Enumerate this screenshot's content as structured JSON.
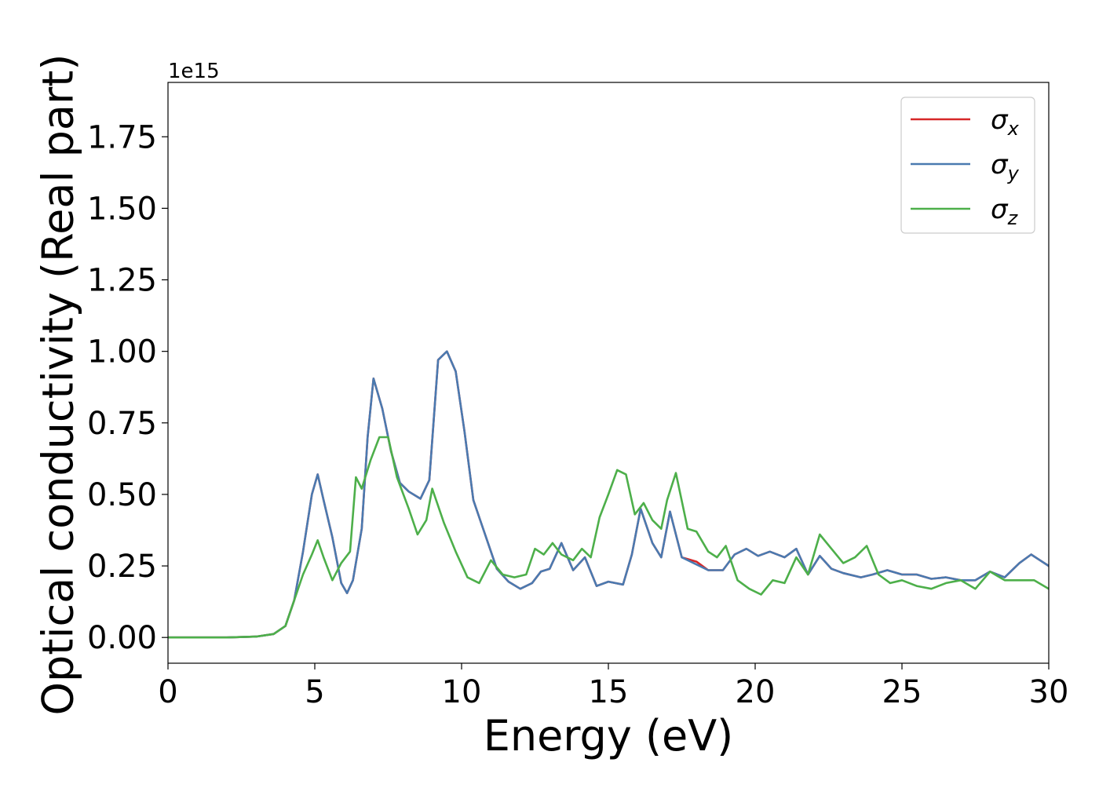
{
  "chart_data": {
    "type": "line",
    "xlabel": "Energy (eV)",
    "ylabel": "Optical conductivity (Real part)",
    "y_offset_text": "1e15",
    "xlim": [
      0,
      30
    ],
    "ylim": [
      -0.09,
      1.94
    ],
    "x_ticks": [
      0,
      5,
      10,
      15,
      20,
      25,
      30
    ],
    "x_tick_labels": [
      "0",
      "5",
      "10",
      "15",
      "20",
      "25",
      "30"
    ],
    "y_ticks": [
      0.0,
      0.25,
      0.5,
      0.75,
      1.0,
      1.25,
      1.5,
      1.75
    ],
    "y_tick_labels": [
      "0.00",
      "0.25",
      "0.50",
      "0.75",
      "1.00",
      "1.25",
      "1.50",
      "1.75"
    ],
    "grid": false,
    "legend_position": "top-right",
    "series": [
      {
        "name": "σ_x",
        "legend_symbol": "σ",
        "legend_subscript": "x",
        "color": "#d62728",
        "points": [
          [
            0,
            0
          ],
          [
            2,
            0
          ],
          [
            3,
            0.003
          ],
          [
            3.6,
            0.012
          ],
          [
            4.0,
            0.04
          ],
          [
            4.3,
            0.13
          ],
          [
            4.6,
            0.3
          ],
          [
            4.9,
            0.5
          ],
          [
            5.1,
            0.57
          ],
          [
            5.3,
            0.48
          ],
          [
            5.6,
            0.35
          ],
          [
            5.9,
            0.19
          ],
          [
            6.1,
            0.155
          ],
          [
            6.3,
            0.2
          ],
          [
            6.6,
            0.38
          ],
          [
            6.8,
            0.7
          ],
          [
            7.0,
            0.905
          ],
          [
            7.3,
            0.8
          ],
          [
            7.6,
            0.65
          ],
          [
            7.9,
            0.54
          ],
          [
            8.2,
            0.51
          ],
          [
            8.6,
            0.485
          ],
          [
            8.9,
            0.55
          ],
          [
            9.2,
            0.97
          ],
          [
            9.5,
            1.0
          ],
          [
            9.8,
            0.93
          ],
          [
            10.1,
            0.72
          ],
          [
            10.4,
            0.48
          ],
          [
            10.7,
            0.39
          ],
          [
            10.9,
            0.33
          ],
          [
            11.2,
            0.24
          ],
          [
            11.6,
            0.195
          ],
          [
            12.0,
            0.17
          ],
          [
            12.4,
            0.19
          ],
          [
            12.7,
            0.23
          ],
          [
            13.0,
            0.24
          ],
          [
            13.4,
            0.33
          ],
          [
            13.8,
            0.235
          ],
          [
            14.2,
            0.28
          ],
          [
            14.6,
            0.18
          ],
          [
            15.0,
            0.195
          ],
          [
            15.5,
            0.185
          ],
          [
            15.8,
            0.29
          ],
          [
            16.1,
            0.45
          ],
          [
            16.5,
            0.33
          ],
          [
            16.8,
            0.28
          ],
          [
            17.1,
            0.44
          ],
          [
            17.5,
            0.28
          ],
          [
            18.0,
            0.265
          ],
          [
            18.4,
            0.235
          ],
          [
            18.9,
            0.235
          ],
          [
            19.3,
            0.29
          ],
          [
            19.7,
            0.31
          ],
          [
            20.1,
            0.285
          ],
          [
            20.5,
            0.3
          ],
          [
            21.0,
            0.28
          ],
          [
            21.4,
            0.31
          ],
          [
            21.8,
            0.22
          ],
          [
            22.2,
            0.285
          ],
          [
            22.6,
            0.24
          ],
          [
            23.0,
            0.225
          ],
          [
            23.6,
            0.21
          ],
          [
            24.0,
            0.22
          ],
          [
            24.5,
            0.235
          ],
          [
            25.0,
            0.22
          ],
          [
            25.5,
            0.22
          ],
          [
            26.0,
            0.205
          ],
          [
            26.5,
            0.21
          ],
          [
            27.0,
            0.2
          ],
          [
            27.5,
            0.2
          ],
          [
            28.0,
            0.23
          ],
          [
            28.5,
            0.21
          ],
          [
            29.0,
            0.26
          ],
          [
            29.4,
            0.29
          ],
          [
            29.7,
            0.27
          ],
          [
            30.0,
            0.25
          ]
        ]
      },
      {
        "name": "σ_y",
        "legend_symbol": "σ",
        "legend_subscript": "y",
        "color": "#4a7ab0",
        "points": [
          [
            0,
            0
          ],
          [
            2,
            0
          ],
          [
            3,
            0.003
          ],
          [
            3.6,
            0.012
          ],
          [
            4.0,
            0.04
          ],
          [
            4.3,
            0.13
          ],
          [
            4.6,
            0.3
          ],
          [
            4.9,
            0.5
          ],
          [
            5.1,
            0.57
          ],
          [
            5.3,
            0.48
          ],
          [
            5.6,
            0.35
          ],
          [
            5.9,
            0.19
          ],
          [
            6.1,
            0.155
          ],
          [
            6.3,
            0.2
          ],
          [
            6.6,
            0.38
          ],
          [
            6.8,
            0.7
          ],
          [
            7.0,
            0.905
          ],
          [
            7.3,
            0.8
          ],
          [
            7.6,
            0.65
          ],
          [
            7.9,
            0.54
          ],
          [
            8.2,
            0.51
          ],
          [
            8.6,
            0.485
          ],
          [
            8.9,
            0.55
          ],
          [
            9.2,
            0.97
          ],
          [
            9.5,
            1.0
          ],
          [
            9.8,
            0.93
          ],
          [
            10.1,
            0.72
          ],
          [
            10.4,
            0.48
          ],
          [
            10.7,
            0.39
          ],
          [
            10.9,
            0.33
          ],
          [
            11.2,
            0.24
          ],
          [
            11.6,
            0.195
          ],
          [
            12.0,
            0.17
          ],
          [
            12.4,
            0.19
          ],
          [
            12.7,
            0.23
          ],
          [
            13.0,
            0.24
          ],
          [
            13.4,
            0.33
          ],
          [
            13.8,
            0.235
          ],
          [
            14.2,
            0.28
          ],
          [
            14.6,
            0.18
          ],
          [
            15.0,
            0.195
          ],
          [
            15.5,
            0.185
          ],
          [
            15.8,
            0.29
          ],
          [
            16.1,
            0.45
          ],
          [
            16.5,
            0.33
          ],
          [
            16.8,
            0.28
          ],
          [
            17.1,
            0.44
          ],
          [
            17.5,
            0.28
          ],
          [
            18.0,
            0.255
          ],
          [
            18.4,
            0.235
          ],
          [
            18.9,
            0.235
          ],
          [
            19.3,
            0.29
          ],
          [
            19.7,
            0.31
          ],
          [
            20.1,
            0.285
          ],
          [
            20.5,
            0.3
          ],
          [
            21.0,
            0.28
          ],
          [
            21.4,
            0.31
          ],
          [
            21.8,
            0.22
          ],
          [
            22.2,
            0.285
          ],
          [
            22.6,
            0.24
          ],
          [
            23.0,
            0.225
          ],
          [
            23.6,
            0.21
          ],
          [
            24.0,
            0.22
          ],
          [
            24.5,
            0.235
          ],
          [
            25.0,
            0.22
          ],
          [
            25.5,
            0.22
          ],
          [
            26.0,
            0.205
          ],
          [
            26.5,
            0.21
          ],
          [
            27.0,
            0.2
          ],
          [
            27.5,
            0.2
          ],
          [
            28.0,
            0.23
          ],
          [
            28.5,
            0.21
          ],
          [
            29.0,
            0.26
          ],
          [
            29.4,
            0.29
          ],
          [
            29.7,
            0.27
          ],
          [
            30.0,
            0.25
          ]
        ]
      },
      {
        "name": "σ_z",
        "legend_symbol": "σ",
        "legend_subscript": "z",
        "color": "#4daf4a",
        "points": [
          [
            0,
            0
          ],
          [
            2,
            0
          ],
          [
            3,
            0.003
          ],
          [
            3.6,
            0.012
          ],
          [
            4.0,
            0.04
          ],
          [
            4.3,
            0.13
          ],
          [
            4.6,
            0.22
          ],
          [
            4.9,
            0.29
          ],
          [
            5.1,
            0.34
          ],
          [
            5.3,
            0.28
          ],
          [
            5.6,
            0.2
          ],
          [
            5.9,
            0.26
          ],
          [
            6.2,
            0.3
          ],
          [
            6.4,
            0.56
          ],
          [
            6.6,
            0.52
          ],
          [
            6.9,
            0.62
          ],
          [
            7.2,
            0.7
          ],
          [
            7.5,
            0.7
          ],
          [
            7.8,
            0.56
          ],
          [
            8.2,
            0.45
          ],
          [
            8.5,
            0.36
          ],
          [
            8.8,
            0.41
          ],
          [
            9.0,
            0.52
          ],
          [
            9.4,
            0.4
          ],
          [
            9.8,
            0.3
          ],
          [
            10.2,
            0.21
          ],
          [
            10.6,
            0.19
          ],
          [
            11.0,
            0.27
          ],
          [
            11.4,
            0.22
          ],
          [
            11.8,
            0.21
          ],
          [
            12.2,
            0.22
          ],
          [
            12.5,
            0.31
          ],
          [
            12.8,
            0.29
          ],
          [
            13.1,
            0.33
          ],
          [
            13.4,
            0.29
          ],
          [
            13.8,
            0.27
          ],
          [
            14.1,
            0.31
          ],
          [
            14.4,
            0.28
          ],
          [
            14.7,
            0.42
          ],
          [
            15.0,
            0.5
          ],
          [
            15.3,
            0.585
          ],
          [
            15.6,
            0.57
          ],
          [
            15.9,
            0.43
          ],
          [
            16.2,
            0.47
          ],
          [
            16.5,
            0.41
          ],
          [
            16.8,
            0.38
          ],
          [
            17.0,
            0.48
          ],
          [
            17.3,
            0.575
          ],
          [
            17.7,
            0.38
          ],
          [
            18.0,
            0.37
          ],
          [
            18.4,
            0.3
          ],
          [
            18.7,
            0.28
          ],
          [
            19.0,
            0.32
          ],
          [
            19.4,
            0.2
          ],
          [
            19.8,
            0.17
          ],
          [
            20.2,
            0.15
          ],
          [
            20.6,
            0.2
          ],
          [
            21.0,
            0.19
          ],
          [
            21.4,
            0.28
          ],
          [
            21.8,
            0.22
          ],
          [
            22.2,
            0.36
          ],
          [
            22.6,
            0.31
          ],
          [
            23.0,
            0.26
          ],
          [
            23.4,
            0.28
          ],
          [
            23.8,
            0.32
          ],
          [
            24.2,
            0.22
          ],
          [
            24.6,
            0.19
          ],
          [
            25.0,
            0.2
          ],
          [
            25.5,
            0.18
          ],
          [
            26.0,
            0.17
          ],
          [
            26.5,
            0.19
          ],
          [
            27.0,
            0.2
          ],
          [
            27.5,
            0.17
          ],
          [
            28.0,
            0.23
          ],
          [
            28.5,
            0.2
          ],
          [
            29.0,
            0.2
          ],
          [
            29.5,
            0.2
          ],
          [
            30.0,
            0.17
          ]
        ]
      }
    ]
  }
}
